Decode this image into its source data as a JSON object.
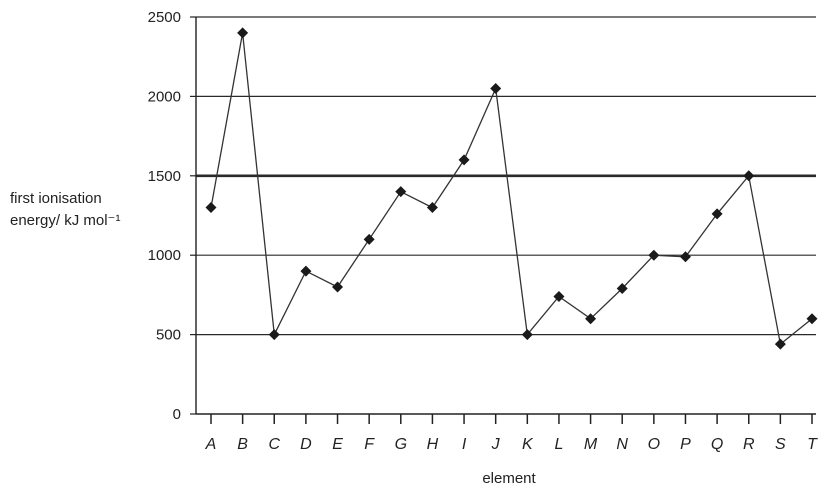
{
  "chart_data": {
    "type": "line",
    "title": "",
    "xlabel": "element",
    "ylabel_line1": "first ionisation",
    "ylabel_line2": "energy/ kJ mol⁻¹",
    "categories": [
      "A",
      "B",
      "C",
      "D",
      "E",
      "F",
      "G",
      "H",
      "I",
      "J",
      "K",
      "L",
      "M",
      "N",
      "O",
      "P",
      "Q",
      "R",
      "S",
      "T"
    ],
    "values": [
      1300,
      2400,
      500,
      900,
      800,
      1100,
      1400,
      1300,
      1600,
      2050,
      500,
      740,
      600,
      790,
      1000,
      990,
      1260,
      1500,
      440,
      600
    ],
    "ylim": [
      0,
      2500
    ],
    "yticks": [
      0,
      500,
      1000,
      1500,
      2000,
      2500
    ],
    "grid": true,
    "emphasized_gridline": 1500,
    "colors": {
      "line": "#333333",
      "marker": "#1a1a1a",
      "grid": "#2a2a2a",
      "axis": "#222222"
    }
  }
}
